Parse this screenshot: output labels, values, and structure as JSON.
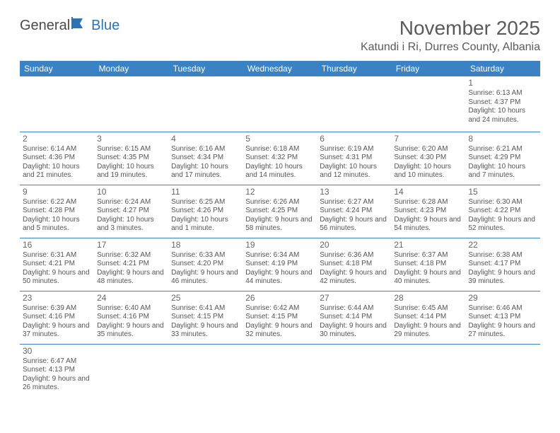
{
  "logo": {
    "text1": "General",
    "text2": "Blue",
    "color1": "#5a5a5a",
    "color2": "#2b73b5"
  },
  "title": "November 2025",
  "location": "Katundi i Ri, Durres County, Albania",
  "colors": {
    "header_bg": "#3b82c4",
    "header_text": "#ffffff",
    "border": "#3b82c4",
    "text": "#555555"
  },
  "weekdays": [
    "Sunday",
    "Monday",
    "Tuesday",
    "Wednesday",
    "Thursday",
    "Friday",
    "Saturday"
  ],
  "weeks": [
    [
      null,
      null,
      null,
      null,
      null,
      null,
      {
        "n": "1",
        "sr": "Sunrise: 6:13 AM",
        "ss": "Sunset: 4:37 PM",
        "dl": "Daylight: 10 hours and 24 minutes."
      }
    ],
    [
      {
        "n": "2",
        "sr": "Sunrise: 6:14 AM",
        "ss": "Sunset: 4:36 PM",
        "dl": "Daylight: 10 hours and 21 minutes."
      },
      {
        "n": "3",
        "sr": "Sunrise: 6:15 AM",
        "ss": "Sunset: 4:35 PM",
        "dl": "Daylight: 10 hours and 19 minutes."
      },
      {
        "n": "4",
        "sr": "Sunrise: 6:16 AM",
        "ss": "Sunset: 4:34 PM",
        "dl": "Daylight: 10 hours and 17 minutes."
      },
      {
        "n": "5",
        "sr": "Sunrise: 6:18 AM",
        "ss": "Sunset: 4:32 PM",
        "dl": "Daylight: 10 hours and 14 minutes."
      },
      {
        "n": "6",
        "sr": "Sunrise: 6:19 AM",
        "ss": "Sunset: 4:31 PM",
        "dl": "Daylight: 10 hours and 12 minutes."
      },
      {
        "n": "7",
        "sr": "Sunrise: 6:20 AM",
        "ss": "Sunset: 4:30 PM",
        "dl": "Daylight: 10 hours and 10 minutes."
      },
      {
        "n": "8",
        "sr": "Sunrise: 6:21 AM",
        "ss": "Sunset: 4:29 PM",
        "dl": "Daylight: 10 hours and 7 minutes."
      }
    ],
    [
      {
        "n": "9",
        "sr": "Sunrise: 6:22 AM",
        "ss": "Sunset: 4:28 PM",
        "dl": "Daylight: 10 hours and 5 minutes."
      },
      {
        "n": "10",
        "sr": "Sunrise: 6:24 AM",
        "ss": "Sunset: 4:27 PM",
        "dl": "Daylight: 10 hours and 3 minutes."
      },
      {
        "n": "11",
        "sr": "Sunrise: 6:25 AM",
        "ss": "Sunset: 4:26 PM",
        "dl": "Daylight: 10 hours and 1 minute."
      },
      {
        "n": "12",
        "sr": "Sunrise: 6:26 AM",
        "ss": "Sunset: 4:25 PM",
        "dl": "Daylight: 9 hours and 58 minutes."
      },
      {
        "n": "13",
        "sr": "Sunrise: 6:27 AM",
        "ss": "Sunset: 4:24 PM",
        "dl": "Daylight: 9 hours and 56 minutes."
      },
      {
        "n": "14",
        "sr": "Sunrise: 6:28 AM",
        "ss": "Sunset: 4:23 PM",
        "dl": "Daylight: 9 hours and 54 minutes."
      },
      {
        "n": "15",
        "sr": "Sunrise: 6:30 AM",
        "ss": "Sunset: 4:22 PM",
        "dl": "Daylight: 9 hours and 52 minutes."
      }
    ],
    [
      {
        "n": "16",
        "sr": "Sunrise: 6:31 AM",
        "ss": "Sunset: 4:21 PM",
        "dl": "Daylight: 9 hours and 50 minutes."
      },
      {
        "n": "17",
        "sr": "Sunrise: 6:32 AM",
        "ss": "Sunset: 4:21 PM",
        "dl": "Daylight: 9 hours and 48 minutes."
      },
      {
        "n": "18",
        "sr": "Sunrise: 6:33 AM",
        "ss": "Sunset: 4:20 PM",
        "dl": "Daylight: 9 hours and 46 minutes."
      },
      {
        "n": "19",
        "sr": "Sunrise: 6:34 AM",
        "ss": "Sunset: 4:19 PM",
        "dl": "Daylight: 9 hours and 44 minutes."
      },
      {
        "n": "20",
        "sr": "Sunrise: 6:36 AM",
        "ss": "Sunset: 4:18 PM",
        "dl": "Daylight: 9 hours and 42 minutes."
      },
      {
        "n": "21",
        "sr": "Sunrise: 6:37 AM",
        "ss": "Sunset: 4:18 PM",
        "dl": "Daylight: 9 hours and 40 minutes."
      },
      {
        "n": "22",
        "sr": "Sunrise: 6:38 AM",
        "ss": "Sunset: 4:17 PM",
        "dl": "Daylight: 9 hours and 39 minutes."
      }
    ],
    [
      {
        "n": "23",
        "sr": "Sunrise: 6:39 AM",
        "ss": "Sunset: 4:16 PM",
        "dl": "Daylight: 9 hours and 37 minutes."
      },
      {
        "n": "24",
        "sr": "Sunrise: 6:40 AM",
        "ss": "Sunset: 4:16 PM",
        "dl": "Daylight: 9 hours and 35 minutes."
      },
      {
        "n": "25",
        "sr": "Sunrise: 6:41 AM",
        "ss": "Sunset: 4:15 PM",
        "dl": "Daylight: 9 hours and 33 minutes."
      },
      {
        "n": "26",
        "sr": "Sunrise: 6:42 AM",
        "ss": "Sunset: 4:15 PM",
        "dl": "Daylight: 9 hours and 32 minutes."
      },
      {
        "n": "27",
        "sr": "Sunrise: 6:44 AM",
        "ss": "Sunset: 4:14 PM",
        "dl": "Daylight: 9 hours and 30 minutes."
      },
      {
        "n": "28",
        "sr": "Sunrise: 6:45 AM",
        "ss": "Sunset: 4:14 PM",
        "dl": "Daylight: 9 hours and 29 minutes."
      },
      {
        "n": "29",
        "sr": "Sunrise: 6:46 AM",
        "ss": "Sunset: 4:13 PM",
        "dl": "Daylight: 9 hours and 27 minutes."
      }
    ],
    [
      {
        "n": "30",
        "sr": "Sunrise: 6:47 AM",
        "ss": "Sunset: 4:13 PM",
        "dl": "Daylight: 9 hours and 26 minutes."
      },
      null,
      null,
      null,
      null,
      null,
      null
    ]
  ]
}
